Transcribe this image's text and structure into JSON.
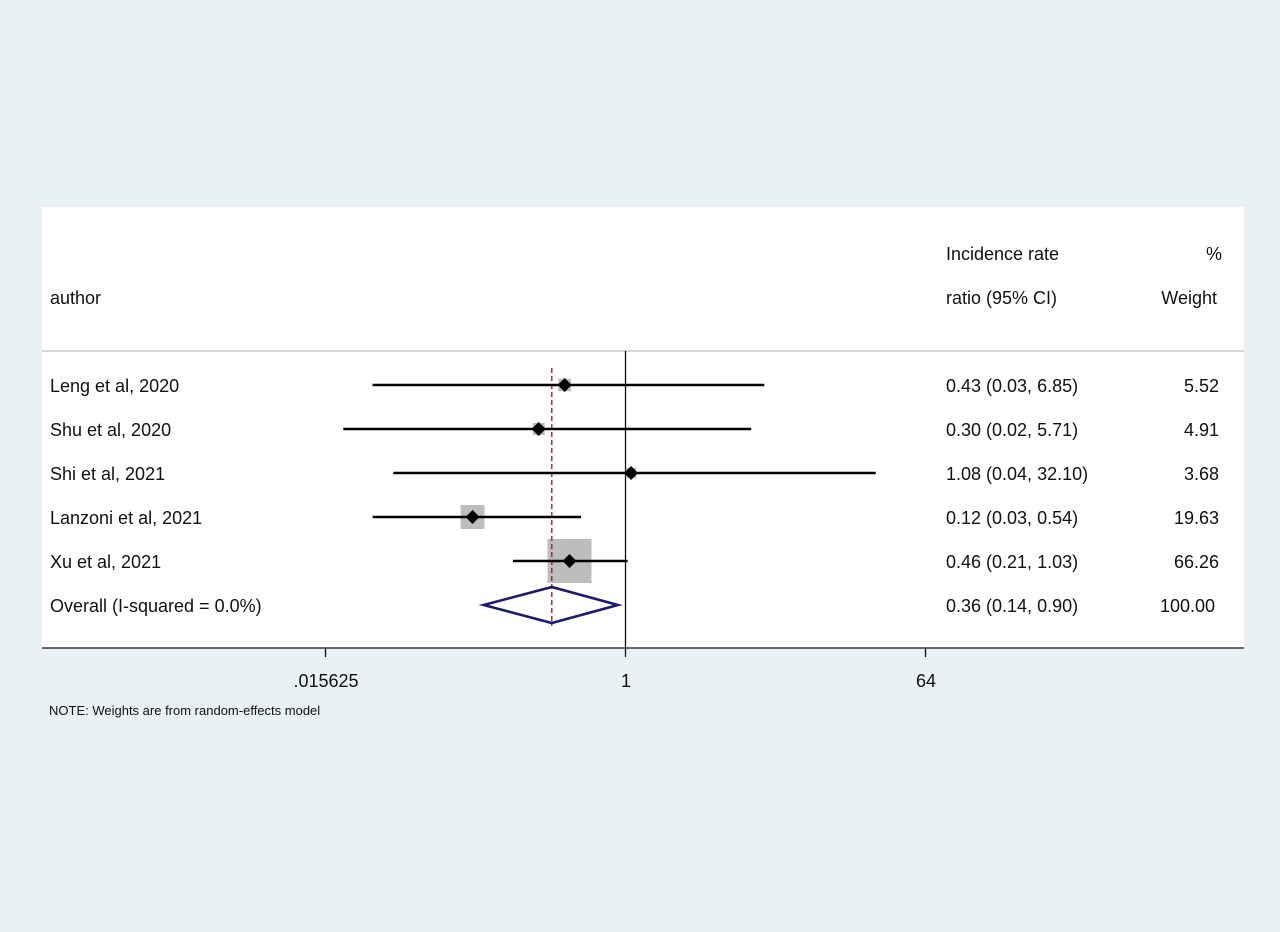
{
  "chart_data": {
    "type": "forest",
    "header": {
      "author": "author",
      "effect_line1": "Incidence rate",
      "effect_line2": "ratio (95% CI)",
      "weight_line1": "%",
      "weight_line2": "Weight"
    },
    "studies": [
      {
        "label": "Leng et al, 2020",
        "es": 0.43,
        "lo": 0.03,
        "hi": 6.85,
        "ci_text": "0.43 (0.03, 6.85)",
        "weight": 5.52,
        "weight_text": "5.52"
      },
      {
        "label": "Shu et al, 2020",
        "es": 0.3,
        "lo": 0.02,
        "hi": 5.71,
        "ci_text": "0.30 (0.02, 5.71)",
        "weight": 4.91,
        "weight_text": "4.91"
      },
      {
        "label": "Shi et al, 2021",
        "es": 1.08,
        "lo": 0.04,
        "hi": 32.1,
        "ci_text": "1.08 (0.04, 32.10)",
        "weight": 3.68,
        "weight_text": "3.68"
      },
      {
        "label": "Lanzoni et al, 2021",
        "es": 0.12,
        "lo": 0.03,
        "hi": 0.54,
        "ci_text": "0.12 (0.03, 0.54)",
        "weight": 19.63,
        "weight_text": "19.63"
      },
      {
        "label": "Xu et al, 2021",
        "es": 0.46,
        "lo": 0.21,
        "hi": 1.03,
        "ci_text": "0.46 (0.21, 1.03)",
        "weight": 66.26,
        "weight_text": "66.26"
      }
    ],
    "overall": {
      "label": "Overall  (I-squared = 0.0%)",
      "es": 0.36,
      "lo": 0.14,
      "hi": 0.9,
      "ci_text": "0.36 (0.14, 0.90)",
      "weight_text": "100.00"
    },
    "x_axis": {
      "scale": "log",
      "ticks": [
        0.015625,
        1,
        64
      ],
      "tick_labels": [
        ".015625",
        "1",
        "64"
      ],
      "null_line": 1
    },
    "note": "NOTE: Weights are from random-effects model",
    "colors": {
      "background": "#eaf1f3",
      "panel": "#ffffff",
      "ci_line": "#000000",
      "weight_box": "#bdbdbd",
      "overall_diamond": "#1a1a6e",
      "overall_dash": "#8b1a1a"
    }
  }
}
